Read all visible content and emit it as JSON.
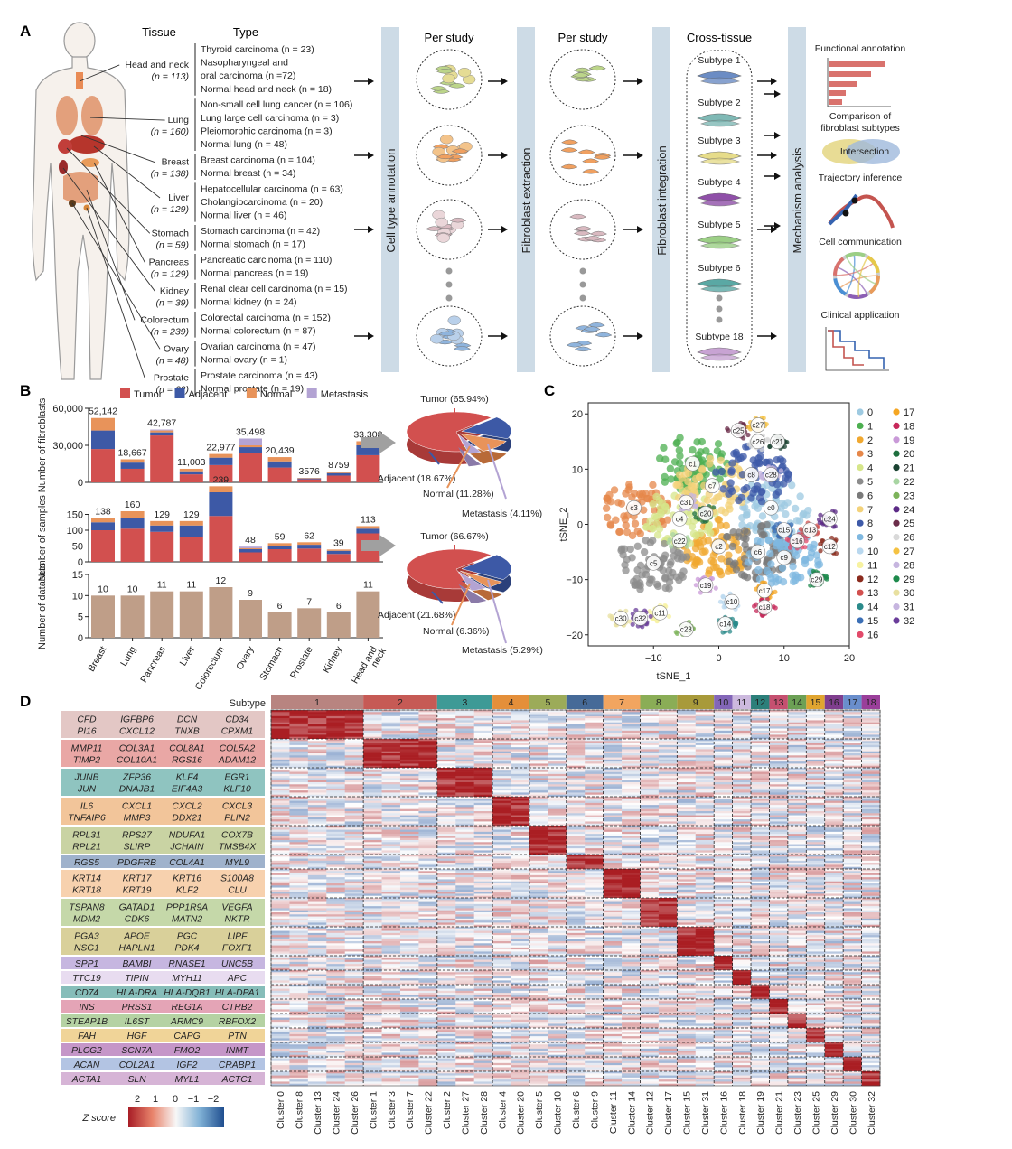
{
  "panels": {
    "A": "A",
    "B": "B",
    "C": "C",
    "D": "D"
  },
  "colors": {
    "tumor": "#d2504f",
    "adjacent": "#3d59a6",
    "normal": "#e8935a",
    "metastasis": "#b3a3d3",
    "datasets": "#bf9e88",
    "band": "#cddbe6",
    "grey": "#999999"
  },
  "panelA": {
    "col_tissue": "Tissue",
    "col_type": "Type",
    "tissues": [
      {
        "name": "Head and neck",
        "n": "(n = 113)",
        "types": [
          "Thyroid carcinoma (n = 23)",
          "Nasopharyngeal and",
          "oral carcinoma (n =72)",
          "Normal head and neck (n = 18)"
        ]
      },
      {
        "name": "Lung",
        "n": "(n = 160)",
        "types": [
          "Non-small cell lung cancer (n = 106)",
          "Lung large cell carcinoma (n = 3)",
          "Pleiomorphic carcinoma (n = 3)",
          "Normal lung (n = 48)"
        ]
      },
      {
        "name": "Breast",
        "n": "(n = 138)",
        "types": [
          "Breast carcinoma (n = 104)",
          "Normal breast (n = 34)"
        ]
      },
      {
        "name": "Liver",
        "n": "(n = 129)",
        "types": [
          "Hepatocellular carcinoma (n = 63)",
          "Cholangiocarcinoma (n = 20)",
          "Normal liver (n = 46)"
        ]
      },
      {
        "name": "Stomach",
        "n": "(n = 59)",
        "types": [
          "Stomach carcinoma (n = 42)",
          "Normal stomach (n = 17)"
        ]
      },
      {
        "name": "Pancreas",
        "n": "(n = 129)",
        "types": [
          "Pancreatic carcinoma (n = 110)",
          "Normal pancreas (n = 19)"
        ]
      },
      {
        "name": "Kidney",
        "n": "(n = 39)",
        "types": [
          "Renal clear cell carcinoma (n = 15)",
          "Normal kidney (n = 24)"
        ]
      },
      {
        "name": "Colorectum",
        "n": "(n = 239)",
        "types": [
          "Colorectal carcinoma (n = 152)",
          "Normal colorectum (n = 87)"
        ]
      },
      {
        "name": "Ovary",
        "n": "(n = 48)",
        "types": [
          "Ovarian carcinoma (n = 47)",
          "Normal ovary (n = 1)"
        ]
      },
      {
        "name": "Prostate",
        "n": "(n = 62)",
        "types": [
          "Prostate carcinoma (n = 43)",
          "Normal prostate (n = 19)"
        ]
      }
    ],
    "steps": [
      "Cell type annotation",
      "Fibroblast extraction",
      "Fibroblast integration",
      "Mechanism analysis"
    ],
    "col_headers": [
      "Per study",
      "Per study",
      "Cross-tissue"
    ],
    "subtypes": [
      "Subtype 1",
      "Subtype 2",
      "Subtype 3",
      "Subtype 4",
      "Subtype 5",
      "Subtype 6",
      "Subtype 18"
    ],
    "analyses": [
      "Functional annotation",
      "Comparison of",
      "fibroblast subtypes",
      "Intersection",
      "Trajectory inference",
      "Cell communication",
      "Clinical application"
    ]
  },
  "panelB": {
    "legend": [
      "Tumor",
      "Adjacent",
      "Normal",
      "Metastasis"
    ],
    "ylabel_top": "Number of fibroblasts",
    "ylabel_mid": "Number of samples",
    "ylabel_bot": "Number of datasets",
    "pie1": [
      "Tumor (65.94%)",
      "Adjacent (18.67%)",
      "Normal (11.28%)",
      "Metastasis (4.11%)"
    ],
    "pie2": [
      "Tumor (66.67%)",
      "Adjacent (21.68%)",
      "Normal (6.36%)",
      "Metastasis (5.29%)"
    ]
  },
  "chart_data": [
    {
      "type": "bar",
      "stacked": true,
      "categories": [
        "Breast",
        "Lung",
        "Pancreas",
        "Liver",
        "Colorectum",
        "Ovary",
        "Stomach",
        "Prostate",
        "Kidney",
        "Head and neck"
      ],
      "totals": [
        "52,142",
        "18,667",
        "42,787",
        "11,003",
        "22,977",
        "35,498",
        "20,439",
        "3576",
        "8759",
        "33,308"
      ],
      "series": [
        {
          "name": "Tumor",
          "values": [
            27000,
            11000,
            38000,
            6500,
            14000,
            24000,
            12000,
            2500,
            5500,
            22000
          ]
        },
        {
          "name": "Adjacent",
          "values": [
            15000,
            5000,
            2500,
            2500,
            6000,
            4500,
            5000,
            700,
            2000,
            8000
          ]
        },
        {
          "name": "Normal",
          "values": [
            10142,
            2667,
            1500,
            2003,
            2977,
            1500,
            3439,
            376,
            1259,
            3308
          ]
        },
        {
          "name": "Metastasis",
          "values": [
            0,
            0,
            787,
            0,
            0,
            5498,
            0,
            0,
            0,
            0
          ]
        }
      ],
      "yticks": [
        "0",
        "30,000",
        "60,000"
      ],
      "ylim": [
        0,
        60000
      ]
    },
    {
      "type": "bar",
      "stacked": true,
      "categories": [
        "Breast",
        "Lung",
        "Pancreas",
        "Liver",
        "Colorectum",
        "Ovary",
        "Stomach",
        "Prostate",
        "Kidney",
        "Head and neck"
      ],
      "totals": [
        "138",
        "160",
        "129",
        "129",
        "239",
        "48",
        "59",
        "62",
        "39",
        "113"
      ],
      "series": [
        {
          "name": "Tumor",
          "values": [
            100,
            105,
            95,
            80,
            145,
            30,
            40,
            42,
            25,
            90
          ]
        },
        {
          "name": "Adjacent",
          "values": [
            25,
            35,
            20,
            35,
            75,
            10,
            10,
            12,
            10,
            15
          ]
        },
        {
          "name": "Normal",
          "values": [
            13,
            20,
            14,
            14,
            19,
            3,
            9,
            8,
            4,
            8
          ]
        },
        {
          "name": "Metastasis",
          "values": [
            0,
            0,
            0,
            0,
            0,
            5,
            0,
            0,
            0,
            0
          ]
        }
      ],
      "yticks": [
        "0",
        "50",
        "100",
        "150"
      ],
      "ylim": [
        0,
        250
      ]
    },
    {
      "type": "bar",
      "categories": [
        "Breast",
        "Lung",
        "Pancreas",
        "Liver",
        "Colorectum",
        "Ovary",
        "Stomach",
        "Prostate",
        "Kidney",
        "Head and neck"
      ],
      "values": [
        10,
        10,
        11,
        11,
        12,
        9,
        6,
        7,
        6,
        11
      ],
      "yticks": [
        "0",
        "5",
        "10",
        "15"
      ],
      "ylim": [
        0,
        15
      ]
    },
    {
      "type": "pie",
      "labels": [
        "Tumor",
        "Adjacent",
        "Normal",
        "Metastasis"
      ],
      "values": [
        65.94,
        18.67,
        11.28,
        4.11
      ]
    },
    {
      "type": "pie",
      "labels": [
        "Tumor",
        "Adjacent",
        "Normal",
        "Metastasis"
      ],
      "values": [
        66.67,
        21.68,
        6.36,
        5.29
      ]
    },
    {
      "type": "scatter",
      "xlabel": "tSNE_1",
      "ylabel": "tSNE_2",
      "xlim": [
        -20,
        20
      ],
      "ylim": [
        -22,
        22
      ],
      "xticks": [
        "−10",
        "0",
        "10",
        "20"
      ],
      "yticks": [
        "20",
        "10",
        "0",
        "−10",
        "−20"
      ],
      "legend": [
        "0",
        "1",
        "2",
        "3",
        "4",
        "5",
        "6",
        "7",
        "8",
        "9",
        "10",
        "11",
        "12",
        "13",
        "14",
        "15",
        "16",
        "17",
        "18",
        "19",
        "20",
        "21",
        "22",
        "23",
        "24",
        "25",
        "26",
        "27",
        "28",
        "29",
        "30",
        "31",
        "32"
      ],
      "palette": [
        "#9ecae1",
        "#4caf50",
        "#f0a830",
        "#e6874a",
        "#d6e68a",
        "#8c8c8c",
        "#7a7a7a",
        "#f3d27a",
        "#3e5aa8",
        "#7fb8e0",
        "#b9d8ef",
        "#f7f2a0",
        "#8b2b1e",
        "#d2504f",
        "#2a8a8a",
        "#3b6fb6",
        "#e24a6a",
        "#f5a623",
        "#c7285a",
        "#c99ad8",
        "#1e6f3e",
        "#1b4332",
        "#a8d5a2",
        "#7cb35a",
        "#5b2a86",
        "#6b2d4a",
        "#d9d9d9",
        "#f5c242",
        "#c6b5df",
        "#1e8a4c",
        "#e8e0a0",
        "#c6b5df",
        "#6a3d9a"
      ],
      "labeled_clusters": [
        {
          "label": "c0",
          "x": 8,
          "y": 3
        },
        {
          "label": "c1",
          "x": -4,
          "y": 11
        },
        {
          "label": "c2",
          "x": 0,
          "y": -4
        },
        {
          "label": "c3",
          "x": -13,
          "y": 3
        },
        {
          "label": "c4",
          "x": -6,
          "y": 1
        },
        {
          "label": "c5",
          "x": -10,
          "y": -7
        },
        {
          "label": "c6",
          "x": 6,
          "y": -5
        },
        {
          "label": "c7",
          "x": -1,
          "y": 7
        },
        {
          "label": "c8",
          "x": 5,
          "y": 9
        },
        {
          "label": "c9",
          "x": 10,
          "y": -6
        },
        {
          "label": "c10",
          "x": 2,
          "y": -14
        },
        {
          "label": "c11",
          "x": -9,
          "y": -16
        },
        {
          "label": "c12",
          "x": 17,
          "y": -4
        },
        {
          "label": "c13",
          "x": 14,
          "y": -1
        },
        {
          "label": "c14",
          "x": 1,
          "y": -18
        },
        {
          "label": "c15",
          "x": 10,
          "y": -1
        },
        {
          "label": "c16",
          "x": 12,
          "y": -3
        },
        {
          "label": "c17",
          "x": 7,
          "y": -12
        },
        {
          "label": "c18",
          "x": 7,
          "y": -15
        },
        {
          "label": "c19",
          "x": -2,
          "y": -11
        },
        {
          "label": "c20",
          "x": -2,
          "y": 2
        },
        {
          "label": "c21",
          "x": 9,
          "y": 15
        },
        {
          "label": "c22",
          "x": -6,
          "y": -3
        },
        {
          "label": "c23",
          "x": -5,
          "y": -19
        },
        {
          "label": "c24",
          "x": 17,
          "y": 1
        },
        {
          "label": "c25",
          "x": 3,
          "y": 17
        },
        {
          "label": "c26",
          "x": 6,
          "y": 15
        },
        {
          "label": "c27",
          "x": 6,
          "y": 18
        },
        {
          "label": "c28",
          "x": 8,
          "y": 9
        },
        {
          "label": "c29",
          "x": 15,
          "y": -10
        },
        {
          "label": "c30",
          "x": -15,
          "y": -17
        },
        {
          "label": "c31",
          "x": -5,
          "y": 4
        },
        {
          "label": "c32",
          "x": -12,
          "y": -17
        }
      ]
    },
    {
      "type": "heatmap",
      "title": "Subtype",
      "legend_title": "Z score",
      "legend_ticks": [
        "2",
        "1",
        "0",
        "−1",
        "−2"
      ],
      "subtypes": [
        "1",
        "2",
        "3",
        "4",
        "5",
        "6",
        "7",
        "8",
        "9",
        "10",
        "11",
        "12",
        "13",
        "14",
        "15",
        "16",
        "17",
        "18"
      ],
      "subtype_colors": [
        "#b88480",
        "#c65a55",
        "#3e9a96",
        "#e48f3a",
        "#9cab59",
        "#466a98",
        "#f2a560",
        "#8aad56",
        "#a89a3a",
        "#8366b8",
        "#ccb9de",
        "#2c7f7a",
        "#c55070",
        "#6ca055",
        "#e0a530",
        "#7f3e8e",
        "#6a8ecc",
        "#9a3f9a"
      ],
      "cluster_groups": [
        [
          "Cluster 0",
          "Cluster 8",
          "Cluster 13",
          "Cluster 24",
          "Cluster 26"
        ],
        [
          "Cluster 1",
          "Cluster 3",
          "Cluster 7",
          "Cluster 22"
        ],
        [
          "Cluster 2",
          "Cluster 27",
          "Cluster 28"
        ],
        [
          "Cluster 4",
          "Cluster 20"
        ],
        [
          "Cluster 5",
          "Cluster 10"
        ],
        [
          "Cluster 6",
          "Cluster 9"
        ],
        [
          "Cluster 11",
          "Cluster 14"
        ],
        [
          "Cluster 12",
          "Cluster 17"
        ],
        [
          "Cluster 15",
          "Cluster 31"
        ],
        [
          "Cluster 16"
        ],
        [
          "Cluster 18"
        ],
        [
          "Cluster 19"
        ],
        [
          "Cluster 21"
        ],
        [
          "Cluster 23"
        ],
        [
          "Cluster 25"
        ],
        [
          "Cluster 29"
        ],
        [
          "Cluster 30"
        ],
        [
          "Cluster 32"
        ]
      ],
      "gene_groups": [
        {
          "genes": [
            "CFD",
            "IGFBP6",
            "DCN",
            "CD34",
            "PI16",
            "CXCL12",
            "TNXB",
            "CPXM1"
          ],
          "color": "#e3c7c5"
        },
        {
          "genes": [
            "MMP11",
            "COL3A1",
            "COL8A1",
            "COL5A2",
            "TIMP2",
            "COL10A1",
            "RGS16",
            "ADAM12"
          ],
          "color": "#e9a7a5"
        },
        {
          "genes": [
            "JUNB",
            "ZFP36",
            "KLF4",
            "EGR1",
            "JUN",
            "DNAJB1",
            "EIF4A3",
            "KLF10"
          ],
          "color": "#8fc4c0"
        },
        {
          "genes": [
            "IL6",
            "CXCL1",
            "CXCL2",
            "CXCL3",
            "TNFAIP6",
            "MMP3",
            "DDX21",
            "PLIN2"
          ],
          "color": "#f2c59a"
        },
        {
          "genes": [
            "RPL31",
            "RPS27",
            "NDUFA1",
            "COX7B",
            "RPL21",
            "SLIRP",
            "JCHAIN",
            "TMSB4X"
          ],
          "color": "#c9d3a3"
        },
        {
          "genes": [
            "RGS5",
            "PDGFRB",
            "COL4A1",
            "MYL9"
          ],
          "color": "#9fb2cc"
        },
        {
          "genes": [
            "KRT14",
            "KRT17",
            "KRT16",
            "S100A8",
            "KRT18",
            "KRT19",
            "KLF2",
            "CLU"
          ],
          "color": "#f7d1ae"
        },
        {
          "genes": [
            "TSPAN8",
            "GATAD1",
            "PPP1R9A",
            "VEGFA",
            "MDM2",
            "CDK6",
            "MATN2",
            "NKTR"
          ],
          "color": "#c5d8a9"
        },
        {
          "genes": [
            "PGA3",
            "APOE",
            "PGC",
            "LIPF",
            "NSG1",
            "HAPLN1",
            "PDK4",
            "FOXF1"
          ],
          "color": "#d9d09a"
        },
        {
          "genes": [
            "SPP1",
            "BAMBI",
            "RNASE1",
            "UNC5B"
          ],
          "color": "#c6b6e0"
        },
        {
          "genes": [
            "TTC19",
            "TIPIN",
            "MYH11",
            "APC"
          ],
          "color": "#e8dcf0"
        },
        {
          "genes": [
            "CD74",
            "HLA-DRA",
            "HLA-DQB1",
            "HLA-DPA1"
          ],
          "color": "#86bdb9"
        },
        {
          "genes": [
            "INS",
            "PRSS1",
            "REG1A",
            "CTRB2"
          ],
          "color": "#e4a4b6"
        },
        {
          "genes": [
            "STEAP1B",
            "IL6ST",
            "ARMC9",
            "RBFOX2"
          ],
          "color": "#b5d2a3"
        },
        {
          "genes": [
            "FAH",
            "HGF",
            "CAPG",
            "PTN"
          ],
          "color": "#f0d498"
        },
        {
          "genes": [
            "PLCG2",
            "SCN7A",
            "FMO2",
            "INMT"
          ],
          "color": "#c596c8"
        },
        {
          "genes": [
            "ACAN",
            "COL2A1",
            "IGF2",
            "CRABP1"
          ],
          "color": "#b3c4e3"
        },
        {
          "genes": [
            "ACTA1",
            "SLN",
            "MYL1",
            "ACTC1"
          ],
          "color": "#d6b4d6"
        }
      ]
    }
  ]
}
